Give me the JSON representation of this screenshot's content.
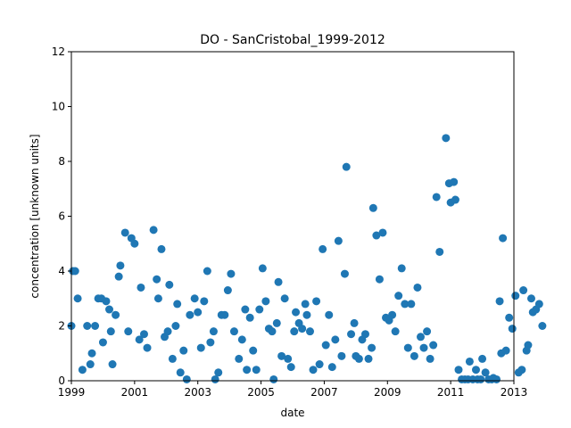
{
  "chart_data": {
    "type": "scatter",
    "title": "DO - SanCristobal_1999-2012",
    "xlabel": "date",
    "ylabel": "concentration [unknown units]",
    "xlim": [
      1999,
      2013
    ],
    "ylim": [
      0,
      12
    ],
    "xticks": [
      1999,
      2001,
      2003,
      2005,
      2007,
      2009,
      2011,
      2013
    ],
    "xtick_labels": [
      "1999",
      "2001",
      "2003",
      "2005",
      "2007",
      "2009",
      "2011",
      "2013"
    ],
    "yticks": [
      0,
      2,
      4,
      6,
      8,
      10,
      12
    ],
    "ytick_labels": [
      "0",
      "2",
      "4",
      "6",
      "8",
      "10",
      "12"
    ],
    "grid": false,
    "point_color": "#1f77b4",
    "points": [
      [
        1999.0,
        2.0
      ],
      [
        1999.05,
        4.0
      ],
      [
        1999.12,
        4.0
      ],
      [
        1999.2,
        3.0
      ],
      [
        1999.35,
        0.4
      ],
      [
        1999.5,
        2.0
      ],
      [
        1999.6,
        0.6
      ],
      [
        1999.65,
        1.0
      ],
      [
        1999.75,
        2.0
      ],
      [
        1999.85,
        3.0
      ],
      [
        1999.95,
        3.0
      ],
      [
        2000.0,
        1.4
      ],
      [
        2000.1,
        2.9
      ],
      [
        2000.2,
        2.6
      ],
      [
        2000.25,
        1.8
      ],
      [
        2000.3,
        0.6
      ],
      [
        2000.4,
        2.4
      ],
      [
        2000.5,
        3.8
      ],
      [
        2000.55,
        4.2
      ],
      [
        2000.7,
        5.4
      ],
      [
        2000.8,
        1.8
      ],
      [
        2000.9,
        5.2
      ],
      [
        2001.0,
        5.0
      ],
      [
        2001.15,
        1.5
      ],
      [
        2001.2,
        3.4
      ],
      [
        2001.3,
        1.7
      ],
      [
        2001.4,
        1.2
      ],
      [
        2001.6,
        5.5
      ],
      [
        2001.7,
        3.7
      ],
      [
        2001.75,
        3.0
      ],
      [
        2001.85,
        4.8
      ],
      [
        2001.95,
        1.6
      ],
      [
        2002.05,
        1.8
      ],
      [
        2002.1,
        3.5
      ],
      [
        2002.2,
        0.8
      ],
      [
        2002.3,
        2.0
      ],
      [
        2002.35,
        2.8
      ],
      [
        2002.45,
        0.3
      ],
      [
        2002.55,
        1.1
      ],
      [
        2002.65,
        0.05
      ],
      [
        2002.75,
        2.4
      ],
      [
        2002.9,
        3.0
      ],
      [
        2003.0,
        2.5
      ],
      [
        2003.1,
        1.2
      ],
      [
        2003.2,
        2.9
      ],
      [
        2003.3,
        4.0
      ],
      [
        2003.4,
        1.4
      ],
      [
        2003.5,
        1.8
      ],
      [
        2003.55,
        0.05
      ],
      [
        2003.65,
        0.3
      ],
      [
        2003.75,
        2.4
      ],
      [
        2003.85,
        2.4
      ],
      [
        2003.95,
        3.3
      ],
      [
        2004.05,
        3.9
      ],
      [
        2004.15,
        1.8
      ],
      [
        2004.3,
        0.8
      ],
      [
        2004.4,
        1.5
      ],
      [
        2004.5,
        2.6
      ],
      [
        2004.55,
        0.4
      ],
      [
        2004.65,
        2.3
      ],
      [
        2004.75,
        1.1
      ],
      [
        2004.85,
        0.4
      ],
      [
        2004.95,
        2.6
      ],
      [
        2005.05,
        4.1
      ],
      [
        2005.15,
        2.9
      ],
      [
        2005.25,
        1.9
      ],
      [
        2005.35,
        1.8
      ],
      [
        2005.4,
        0.05
      ],
      [
        2005.5,
        2.1
      ],
      [
        2005.55,
        3.6
      ],
      [
        2005.65,
        0.9
      ],
      [
        2005.75,
        3.0
      ],
      [
        2005.85,
        0.8
      ],
      [
        2005.95,
        0.5
      ],
      [
        2006.05,
        1.8
      ],
      [
        2006.1,
        2.5
      ],
      [
        2006.2,
        2.1
      ],
      [
        2006.3,
        1.9
      ],
      [
        2006.4,
        2.8
      ],
      [
        2006.45,
        2.4
      ],
      [
        2006.55,
        1.8
      ],
      [
        2006.65,
        0.4
      ],
      [
        2006.75,
        2.9
      ],
      [
        2006.85,
        0.6
      ],
      [
        2006.95,
        4.8
      ],
      [
        2007.05,
        1.3
      ],
      [
        2007.15,
        2.4
      ],
      [
        2007.25,
        0.5
      ],
      [
        2007.35,
        1.5
      ],
      [
        2007.45,
        5.1
      ],
      [
        2007.55,
        0.9
      ],
      [
        2007.65,
        3.9
      ],
      [
        2007.7,
        7.8
      ],
      [
        2007.85,
        1.7
      ],
      [
        2007.95,
        2.1
      ],
      [
        2008.0,
        0.9
      ],
      [
        2008.1,
        0.8
      ],
      [
        2008.2,
        1.5
      ],
      [
        2008.3,
        1.7
      ],
      [
        2008.4,
        0.8
      ],
      [
        2008.5,
        1.2
      ],
      [
        2008.55,
        6.3
      ],
      [
        2008.65,
        5.3
      ],
      [
        2008.75,
        3.7
      ],
      [
        2008.85,
        5.4
      ],
      [
        2008.95,
        2.3
      ],
      [
        2009.05,
        2.2
      ],
      [
        2009.15,
        2.4
      ],
      [
        2009.25,
        1.8
      ],
      [
        2009.35,
        3.1
      ],
      [
        2009.45,
        4.1
      ],
      [
        2009.55,
        2.8
      ],
      [
        2009.65,
        1.2
      ],
      [
        2009.75,
        2.8
      ],
      [
        2009.85,
        0.9
      ],
      [
        2009.95,
        3.4
      ],
      [
        2010.05,
        1.6
      ],
      [
        2010.15,
        1.2
      ],
      [
        2010.25,
        1.8
      ],
      [
        2010.35,
        0.8
      ],
      [
        2010.45,
        1.3
      ],
      [
        2010.55,
        6.7
      ],
      [
        2010.65,
        4.7
      ],
      [
        2010.85,
        8.85
      ],
      [
        2010.95,
        7.2
      ],
      [
        2011.0,
        6.5
      ],
      [
        2011.1,
        7.25
      ],
      [
        2011.15,
        6.6
      ],
      [
        2011.25,
        0.4
      ],
      [
        2011.35,
        0.05
      ],
      [
        2011.45,
        0.05
      ],
      [
        2011.55,
        0.05
      ],
      [
        2011.6,
        0.7
      ],
      [
        2011.7,
        0.05
      ],
      [
        2011.8,
        0.4
      ],
      [
        2011.85,
        0.05
      ],
      [
        2011.95,
        0.05
      ],
      [
        2012.0,
        0.8
      ],
      [
        2012.1,
        0.3
      ],
      [
        2012.2,
        0.05
      ],
      [
        2012.3,
        0.05
      ],
      [
        2012.35,
        0.1
      ],
      [
        2012.45,
        0.05
      ],
      [
        2012.55,
        2.9
      ],
      [
        2012.6,
        1.0
      ],
      [
        2012.65,
        5.2
      ],
      [
        2012.75,
        1.1
      ],
      [
        2012.85,
        2.3
      ],
      [
        2012.95,
        1.9
      ],
      [
        2013.05,
        3.1
      ],
      [
        2013.15,
        0.3
      ],
      [
        2013.25,
        0.4
      ],
      [
        2013.3,
        3.3
      ],
      [
        2013.4,
        1.1
      ],
      [
        2013.45,
        1.3
      ],
      [
        2013.55,
        3.0
      ],
      [
        2013.6,
        2.5
      ],
      [
        2013.7,
        2.6
      ],
      [
        2013.8,
        2.8
      ],
      [
        2013.9,
        2.0
      ]
    ]
  }
}
